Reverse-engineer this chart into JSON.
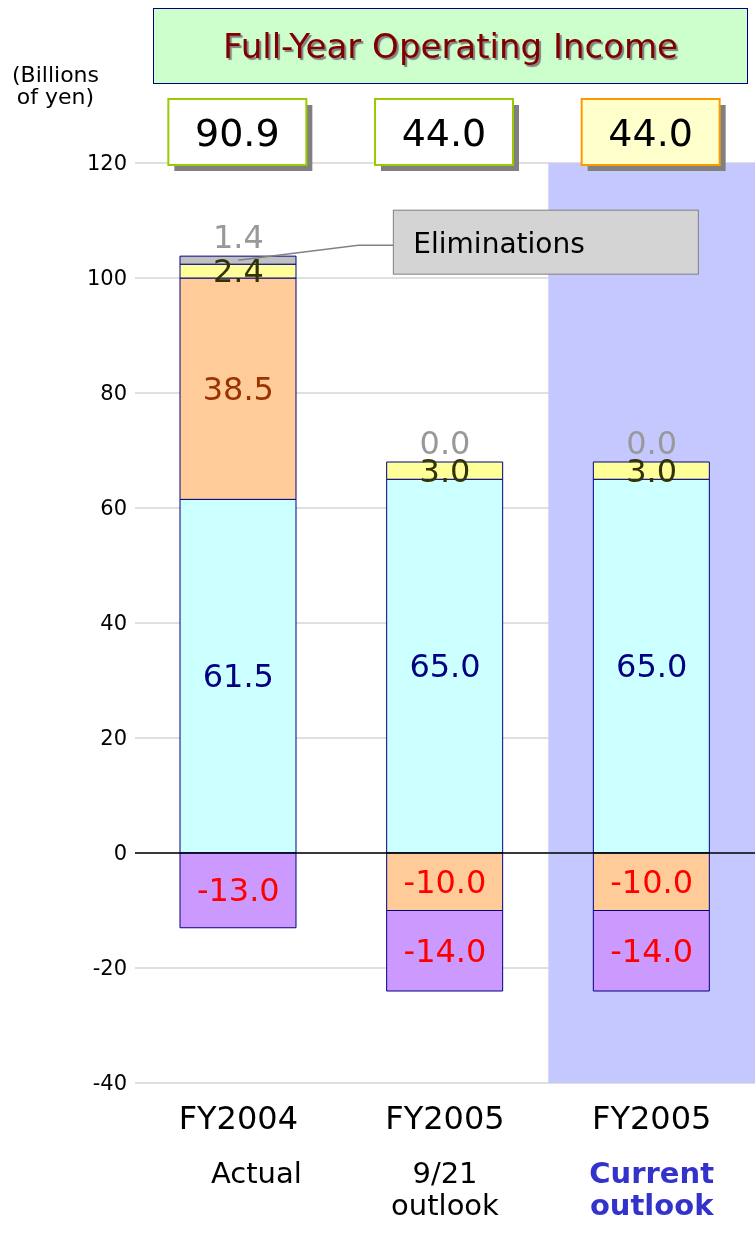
{
  "chart_data": {
    "type": "bar",
    "title": "Full-Year Operating Income",
    "ylabel": "(Billions\nof yen)",
    "categories": [
      "FY2004\nActual",
      "FY2005\n9/21\noutlook",
      "FY2005\nCurrent\noutlook"
    ],
    "series": [
      {
        "color": "#ccffff",
        "values": [
          61.5,
          65.0,
          65.0
        ],
        "value_labels": [
          "61.5",
          "65.0",
          "65.0"
        ]
      },
      {
        "color": "#ffcc99",
        "values": [
          38.5,
          -10.0,
          -10.0
        ],
        "value_labels": [
          "38.5",
          "-10.0",
          "-10.0"
        ]
      },
      {
        "color": "#ffff99",
        "values": [
          2.4,
          3.0,
          3.0
        ],
        "value_labels": [
          "2.4",
          "3.0",
          "3.0"
        ]
      },
      {
        "color": "#c0c0c0",
        "values": [
          1.4,
          0.0,
          0.0
        ],
        "value_labels": [
          "1.4",
          "0.0",
          "0.0"
        ]
      },
      {
        "color": "#cc99ff",
        "values": [
          -13.0,
          -14.0,
          -14.0
        ],
        "value_labels": [
          "-13.0",
          "-14.0",
          "-14.0"
        ]
      }
    ],
    "stacked": true,
    "annotations": [
      {
        "text": "Eliminations",
        "x": "FY2004\nActual",
        "y": 103.1
      },
      "90.9",
      "44.0",
      "44.0"
    ],
    "ref_lines": [
      {
        "axis": "y",
        "value": 0,
        "color": "#000000"
      }
    ],
    "bands": [
      {
        "axis": "x",
        "from": "FY2005\nCurrent\noutlook",
        "to": "FY2005\nCurrent\noutlook",
        "color": "#c4c8ff"
      }
    ],
    "ylim": [
      -40,
      120
    ],
    "yticks": [
      -40,
      -20,
      0,
      20,
      40,
      60,
      80,
      100,
      120
    ],
    "grid": "y"
  }
}
